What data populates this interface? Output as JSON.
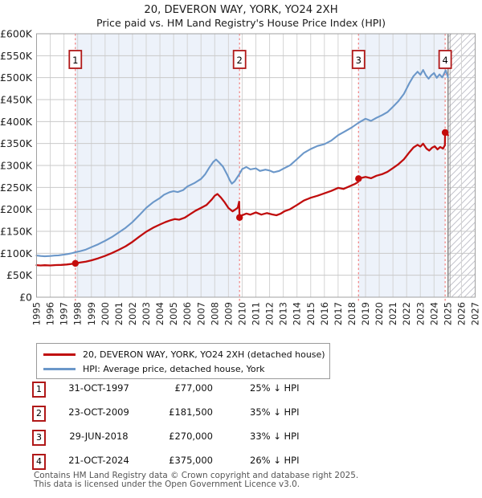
{
  "title": "20, DEVERON WAY, YORK, YO24 2XH",
  "subtitle": "Price paid vs. HM Land Registry's House Price Index (HPI)",
  "legend": {
    "entries": [
      {
        "label": "20, DEVERON WAY, YORK, YO24 2XH (detached house)",
        "color": "#c00d0d"
      },
      {
        "label": "HPI: Average price, detached house, York",
        "color": "#6b97c9"
      }
    ]
  },
  "table": {
    "rows": [
      {
        "num": "1",
        "date": "31-OCT-1997",
        "price": "£77,000",
        "hpi_diff": "25% ↓ HPI"
      },
      {
        "num": "2",
        "date": "23-OCT-2009",
        "price": "£181,500",
        "hpi_diff": "35% ↓ HPI"
      },
      {
        "num": "3",
        "date": "29-JUN-2018",
        "price": "£270,000",
        "hpi_diff": "33% ↓ HPI"
      },
      {
        "num": "4",
        "date": "21-OCT-2024",
        "price": "£375,000",
        "hpi_diff": "26% ↓ HPI"
      }
    ]
  },
  "footer": {
    "line1": "Contains HM Land Registry data © Crown copyright and database right 2025.",
    "line2": "This data is licensed under the Open Government Licence v3.0."
  },
  "chart_data": {
    "type": "line",
    "title": "20, DEVERON WAY, YORK, YO24 2XH",
    "xlabel": "",
    "ylabel": "",
    "xlim": [
      1995,
      2027
    ],
    "ylim": [
      0,
      600000
    ],
    "grid": true,
    "legend_position": "below",
    "x_ticks": [
      1995,
      1996,
      1997,
      1998,
      1999,
      2000,
      2001,
      2002,
      2003,
      2004,
      2005,
      2006,
      2007,
      2008,
      2009,
      2010,
      2011,
      2012,
      2013,
      2014,
      2015,
      2016,
      2017,
      2018,
      2019,
      2020,
      2021,
      2022,
      2023,
      2024,
      2025,
      2026,
      2027
    ],
    "y_ticks": [
      {
        "label": "£600K",
        "value": 600000
      },
      {
        "label": "£550K",
        "value": 550000
      },
      {
        "label": "£500K",
        "value": 500000
      },
      {
        "label": "£450K",
        "value": 450000
      },
      {
        "label": "£400K",
        "value": 400000
      },
      {
        "label": "£350K",
        "value": 350000
      },
      {
        "label": "£300K",
        "value": 300000
      },
      {
        "label": "£250K",
        "value": 250000
      },
      {
        "label": "£200K",
        "value": 200000
      },
      {
        "label": "£150K",
        "value": 150000
      },
      {
        "label": "£100K",
        "value": 100000
      },
      {
        "label": "£50K",
        "value": 50000
      },
      {
        "label": "£0",
        "value": 0
      }
    ],
    "shaded_bands": [
      [
        1997.83,
        2009.81
      ],
      [
        2018.49,
        2024.81
      ]
    ],
    "future_region": {
      "start": 2025.02,
      "end": 2027
    },
    "sales": [
      {
        "num": "1",
        "year": 1997.83,
        "price": 77000,
        "date": "31-OCT-1997"
      },
      {
        "num": "2",
        "year": 2009.81,
        "price": 181500,
        "date": "23-OCT-2009"
      },
      {
        "num": "3",
        "year": 2018.49,
        "price": 270000,
        "date": "29-JUN-2018"
      },
      {
        "num": "4",
        "year": 2024.81,
        "price": 375000,
        "date": "21-OCT-2024"
      }
    ],
    "series": [
      {
        "name": "20, DEVERON WAY, YORK, YO24 2XH (detached house)",
        "color": "#c00d0d",
        "points": [
          [
            1995.0,
            73000
          ],
          [
            1995.3,
            72200
          ],
          [
            1995.6,
            72800
          ],
          [
            1996.0,
            72300
          ],
          [
            1996.4,
            73200
          ],
          [
            1996.8,
            73600
          ],
          [
            1997.2,
            74500
          ],
          [
            1997.5,
            75500
          ],
          [
            1997.83,
            77000
          ],
          [
            1998.2,
            79000
          ],
          [
            1998.6,
            81000
          ],
          [
            1999.0,
            84000
          ],
          [
            1999.5,
            88500
          ],
          [
            2000.0,
            94000
          ],
          [
            2000.5,
            100500
          ],
          [
            2001.0,
            108000
          ],
          [
            2001.5,
            116000
          ],
          [
            2002.0,
            126000
          ],
          [
            2002.5,
            138000
          ],
          [
            2003.0,
            149000
          ],
          [
            2003.5,
            158000
          ],
          [
            2004.0,
            165500
          ],
          [
            2004.4,
            171000
          ],
          [
            2004.8,
            175500
          ],
          [
            2005.1,
            178000
          ],
          [
            2005.4,
            176500
          ],
          [
            2005.8,
            181000
          ],
          [
            2006.2,
            189000
          ],
          [
            2006.6,
            197000
          ],
          [
            2007.0,
            203500
          ],
          [
            2007.4,
            210000
          ],
          [
            2007.8,
            223000
          ],
          [
            2008.0,
            231000
          ],
          [
            2008.2,
            235000
          ],
          [
            2008.45,
            227000
          ],
          [
            2008.7,
            217000
          ],
          [
            2009.0,
            203000
          ],
          [
            2009.3,
            195500
          ],
          [
            2009.5,
            199500
          ],
          [
            2009.68,
            204000
          ],
          [
            2009.78,
            217500
          ],
          [
            2009.81,
            181500
          ],
          [
            2010.0,
            186500
          ],
          [
            2010.3,
            190500
          ],
          [
            2010.6,
            188000
          ],
          [
            2011.0,
            193000
          ],
          [
            2011.4,
            188000
          ],
          [
            2011.8,
            191500
          ],
          [
            2012.2,
            188500
          ],
          [
            2012.5,
            186500
          ],
          [
            2012.8,
            190000
          ],
          [
            2013.1,
            196000
          ],
          [
            2013.5,
            200500
          ],
          [
            2014.0,
            210000
          ],
          [
            2014.5,
            220000
          ],
          [
            2015.0,
            226500
          ],
          [
            2015.5,
            231000
          ],
          [
            2016.0,
            236500
          ],
          [
            2016.5,
            242000
          ],
          [
            2017.0,
            249000
          ],
          [
            2017.4,
            246500
          ],
          [
            2017.8,
            252000
          ],
          [
            2018.2,
            257500
          ],
          [
            2018.45,
            262000
          ],
          [
            2018.49,
            270000
          ],
          [
            2019.0,
            274000
          ],
          [
            2019.4,
            271000
          ],
          [
            2019.8,
            276500
          ],
          [
            2020.2,
            280000
          ],
          [
            2020.6,
            285500
          ],
          [
            2021.0,
            294000
          ],
          [
            2021.4,
            303000
          ],
          [
            2021.8,
            314000
          ],
          [
            2022.2,
            330000
          ],
          [
            2022.5,
            341000
          ],
          [
            2022.8,
            347000
          ],
          [
            2023.0,
            343000
          ],
          [
            2023.2,
            349500
          ],
          [
            2023.45,
            338500
          ],
          [
            2023.65,
            334000
          ],
          [
            2023.85,
            340500
          ],
          [
            2024.05,
            343500
          ],
          [
            2024.25,
            336500
          ],
          [
            2024.45,
            342000
          ],
          [
            2024.65,
            338500
          ],
          [
            2024.79,
            346000
          ],
          [
            2024.81,
            375000
          ],
          [
            2025.02,
            369000
          ]
        ]
      },
      {
        "name": "HPI: Average price, detached house, York",
        "color": "#6b97c9",
        "points": [
          [
            1995.0,
            95000
          ],
          [
            1995.3,
            93800
          ],
          [
            1995.6,
            93200
          ],
          [
            1996.0,
            93800
          ],
          [
            1996.3,
            94800
          ],
          [
            1996.6,
            95300
          ],
          [
            1997.0,
            97000
          ],
          [
            1997.3,
            98500
          ],
          [
            1997.6,
            100500
          ],
          [
            1997.83,
            102500
          ],
          [
            1998.2,
            105000
          ],
          [
            1998.6,
            108500
          ],
          [
            1999.0,
            114000
          ],
          [
            1999.5,
            120500
          ],
          [
            2000.0,
            128500
          ],
          [
            2000.5,
            137000
          ],
          [
            2001.0,
            147500
          ],
          [
            2001.5,
            158000
          ],
          [
            2002.0,
            171000
          ],
          [
            2002.5,
            187000
          ],
          [
            2003.0,
            203500
          ],
          [
            2003.5,
            216000
          ],
          [
            2004.0,
            226000
          ],
          [
            2004.3,
            233500
          ],
          [
            2004.7,
            239000
          ],
          [
            2005.0,
            241500
          ],
          [
            2005.3,
            239500
          ],
          [
            2005.7,
            244000
          ],
          [
            2006.0,
            252000
          ],
          [
            2006.5,
            259500
          ],
          [
            2007.0,
            269500
          ],
          [
            2007.3,
            280000
          ],
          [
            2007.6,
            295000
          ],
          [
            2007.9,
            308500
          ],
          [
            2008.1,
            313500
          ],
          [
            2008.3,
            307500
          ],
          [
            2008.6,
            297500
          ],
          [
            2008.9,
            279500
          ],
          [
            2009.1,
            266000
          ],
          [
            2009.25,
            258500
          ],
          [
            2009.45,
            264000
          ],
          [
            2009.65,
            273500
          ],
          [
            2009.81,
            281000
          ],
          [
            2010.0,
            291500
          ],
          [
            2010.3,
            296500
          ],
          [
            2010.6,
            291000
          ],
          [
            2011.0,
            293500
          ],
          [
            2011.3,
            287500
          ],
          [
            2011.7,
            290500
          ],
          [
            2012.0,
            288500
          ],
          [
            2012.3,
            284500
          ],
          [
            2012.7,
            287500
          ],
          [
            2013.0,
            292500
          ],
          [
            2013.5,
            300500
          ],
          [
            2014.0,
            314500
          ],
          [
            2014.5,
            328500
          ],
          [
            2015.0,
            337500
          ],
          [
            2015.5,
            344500
          ],
          [
            2016.0,
            348500
          ],
          [
            2016.5,
            356500
          ],
          [
            2017.0,
            369000
          ],
          [
            2017.5,
            377500
          ],
          [
            2018.0,
            386500
          ],
          [
            2018.5,
            397500
          ],
          [
            2019.0,
            406500
          ],
          [
            2019.4,
            401500
          ],
          [
            2019.8,
            408500
          ],
          [
            2020.2,
            414500
          ],
          [
            2020.6,
            421500
          ],
          [
            2021.0,
            433500
          ],
          [
            2021.4,
            446500
          ],
          [
            2021.8,
            463000
          ],
          [
            2022.2,
            487500
          ],
          [
            2022.5,
            503500
          ],
          [
            2022.8,
            513500
          ],
          [
            2023.0,
            506500
          ],
          [
            2023.2,
            517500
          ],
          [
            2023.4,
            505500
          ],
          [
            2023.6,
            497500
          ],
          [
            2023.8,
            505500
          ],
          [
            2024.0,
            510500
          ],
          [
            2024.2,
            499500
          ],
          [
            2024.4,
            507500
          ],
          [
            2024.6,
            500500
          ],
          [
            2024.85,
            516500
          ],
          [
            2025.02,
            500500
          ]
        ]
      }
    ],
    "colors": {
      "band_fill": "#edf2fa",
      "grid_v": "#d4d4d4",
      "grid_h": "#c9c9c9",
      "plot_border": "#a0a0a0",
      "sale_dashed_line": "#f28080",
      "badge_border": "#b01818",
      "badge_text": "#000000",
      "dot_fill": "#c40b0b",
      "hatch_line": "#c3c3cc",
      "future_boundary": "#8c8c8c",
      "tick_text": "#222222"
    }
  }
}
